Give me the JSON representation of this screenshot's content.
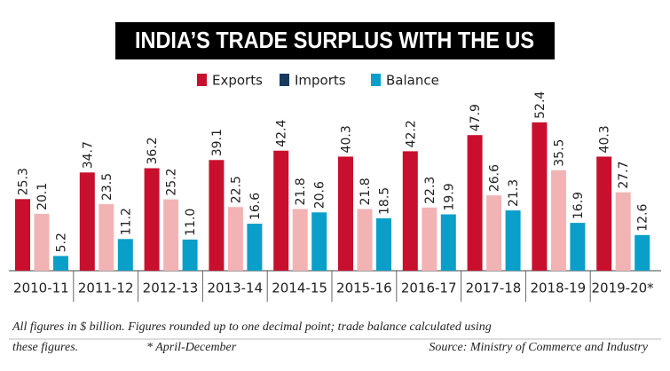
{
  "chart_data": {
    "type": "bar",
    "title": "INDIA’S TRADE SURPLUS WITH THE US",
    "categories": [
      "2010-11",
      "2011-12",
      "2012-13",
      "2013-14",
      "2014-15",
      "2015-16",
      "2016-17",
      "2017-18",
      "2018-19",
      "2019-20*"
    ],
    "series": [
      {
        "name": "Exports",
        "color": "#c8102e",
        "values": [
          25.3,
          34.7,
          36.2,
          39.1,
          42.4,
          40.3,
          42.2,
          47.9,
          52.4,
          40.3
        ]
      },
      {
        "name": "Imports",
        "color": "#f2b3b5",
        "legend_color": "#173a5e",
        "values": [
          20.1,
          23.5,
          25.2,
          22.5,
          21.8,
          21.8,
          22.3,
          26.6,
          35.5,
          27.7
        ]
      },
      {
        "name": "Balance",
        "color": "#0a9fc9",
        "values": [
          5.2,
          11.2,
          11,
          16.6,
          20.6,
          18.5,
          19.9,
          21.3,
          16.9,
          12.6
        ],
        "value_labels": [
          "5.2",
          "11.2",
          "11.0",
          "16.6",
          "20.6",
          "18.5",
          "19.9",
          "21.3",
          "16.9",
          "12.6"
        ]
      }
    ],
    "notes": [
      "All figures in $ billion. Figures rounded up to one decimal point; trade balance calculated using",
      "these figures.",
      "* April-December",
      "Source: Ministry of Commerce and Industry"
    ]
  }
}
